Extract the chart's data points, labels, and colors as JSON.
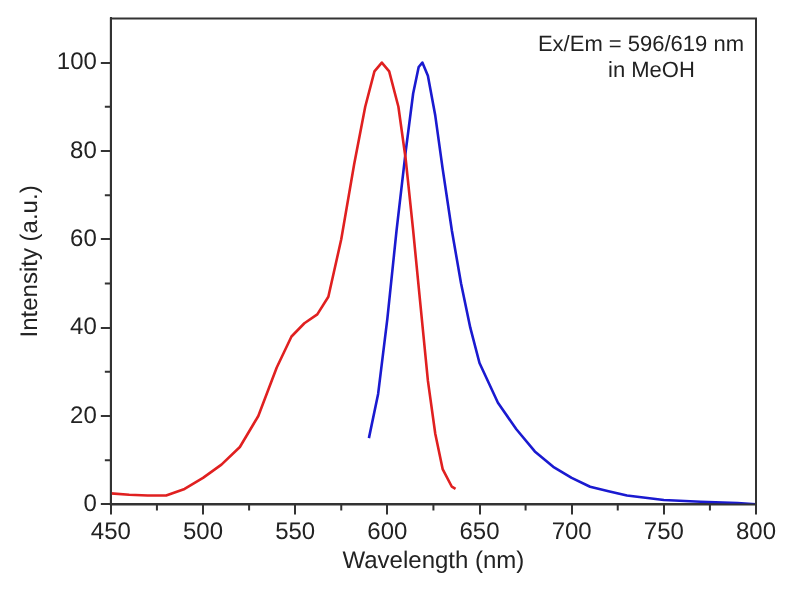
{
  "chart_data": {
    "type": "line",
    "xlabel": "Wavelength (nm)",
    "ylabel": "Intensity (a.u.)",
    "annotations": [
      "Ex/Em = 596/619 nm",
      "in MeOH"
    ],
    "xlim": [
      450,
      800
    ],
    "xticks": [
      450,
      500,
      550,
      600,
      650,
      700,
      750,
      800
    ],
    "ylim": [
      0,
      110
    ],
    "yticks": [
      0,
      20,
      40,
      60,
      80,
      100
    ],
    "grid": false,
    "legend": false,
    "marker": "none",
    "line_style": "solid",
    "series": [
      {
        "color": "#e02020",
        "x": [
          450,
          460,
          470,
          480,
          490,
          500,
          510,
          520,
          530,
          540,
          548,
          555,
          562,
          568,
          575,
          582,
          588,
          593,
          597,
          601,
          606,
          610,
          614,
          618,
          622,
          626,
          630,
          635,
          637
        ],
        "values": [
          2.5,
          2.2,
          2,
          2,
          3.5,
          6,
          9,
          13,
          20,
          31,
          38,
          41,
          43,
          47,
          60,
          77,
          90,
          98,
          100,
          98,
          90,
          78,
          62,
          45,
          28,
          16,
          8,
          4,
          3.5
        ]
      },
      {
        "color": "#1a1ad0",
        "x": [
          590,
          595,
          600,
          605,
          610,
          614,
          617,
          619,
          622,
          626,
          630,
          635,
          640,
          645,
          650,
          660,
          670,
          680,
          690,
          700,
          710,
          720,
          730,
          740,
          750,
          770,
          790,
          800
        ],
        "values": [
          15,
          25,
          42,
          62,
          80,
          93,
          99,
          100,
          97,
          88,
          76,
          62,
          50,
          40,
          32,
          23,
          17,
          12,
          8.5,
          6,
          4,
          3,
          2,
          1.5,
          1,
          0.6,
          0.3,
          0
        ]
      }
    ]
  }
}
